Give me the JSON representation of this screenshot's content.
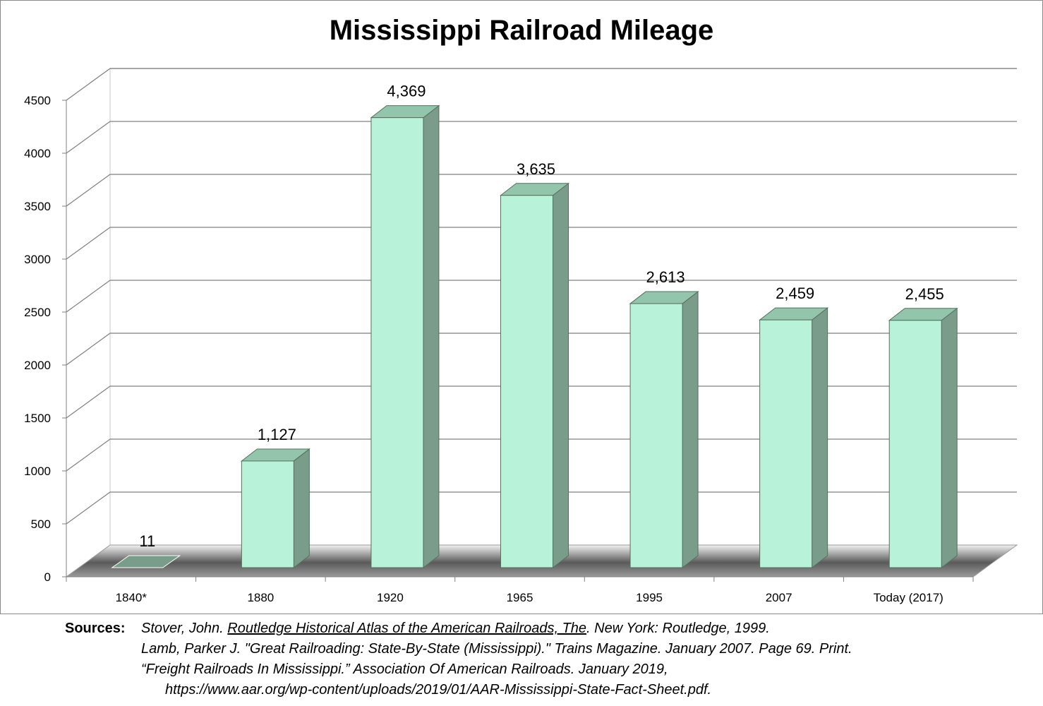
{
  "chart_data": {
    "type": "bar",
    "title": "Mississippi Railroad Mileage",
    "categories": [
      "1840*",
      "1880",
      "1920",
      "1965",
      "1995",
      "2007",
      "Today  (2017)"
    ],
    "values": [
      11,
      1127,
      4369,
      3635,
      2613,
      2459,
      2455
    ],
    "value_labels": [
      "11",
      "1,127",
      "4,369",
      "3,635",
      "2,613",
      "2,459",
      "2,455"
    ],
    "ylim": [
      0,
      4500
    ],
    "yticks": [
      "0",
      "500",
      "1000",
      "1500",
      "2000",
      "2500",
      "3000",
      "3500",
      "4000",
      "4500"
    ],
    "xlabel": "",
    "ylabel": "",
    "grid": true,
    "style": "3d-column",
    "colors": {
      "bar_front": "#b8f2d8",
      "bar_side": "#7a9c8a",
      "bar_top": "#93c4ac",
      "grid": "#808080"
    }
  },
  "sources": {
    "heading": "Sources:",
    "s1_author": "Stover, John. ",
    "s1_title": "Routledge Historical Atlas of the American Railroads, The",
    "s1_rest": ". New York: Routledge, 1999.",
    "s2": "Lamb, Parker J. \"Great Railroading: State-By-State (Mississippi).\" Trains Magazine. January 2007. Page 69. Print.",
    "s3": "“Freight Railroads In Mississippi.” Association Of American Railroads. January 2019,",
    "s3_url": "https://www.aar.org/wp-content/uploads/2019/01/AAR-Mississippi-State-Fact-Sheet.pdf."
  }
}
